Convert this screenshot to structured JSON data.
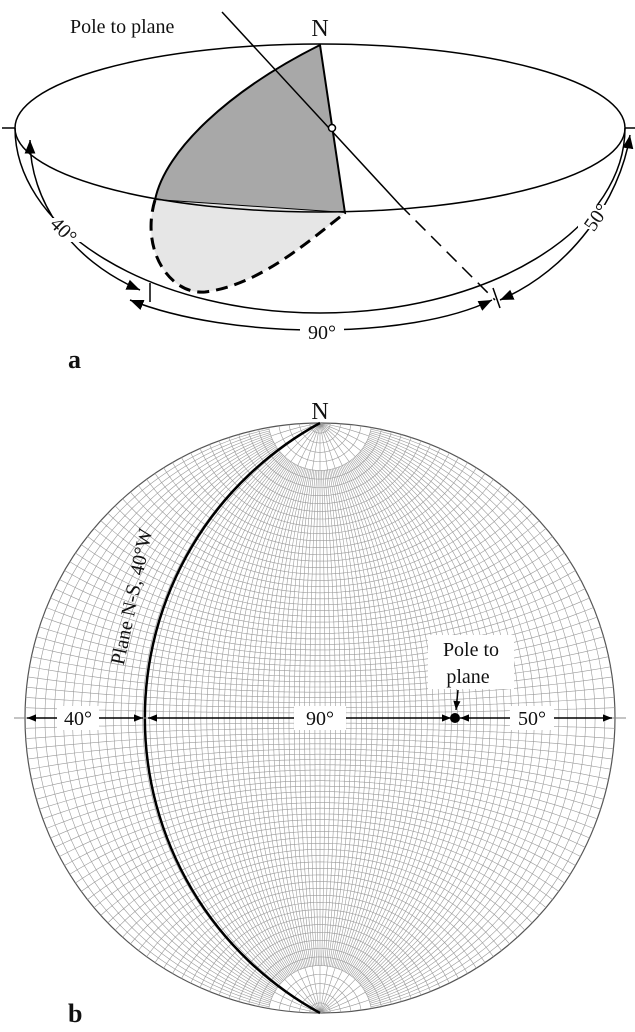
{
  "panel_a": {
    "label": "a",
    "north": "N",
    "pole_label": "Pole to plane",
    "angles": [
      "40°",
      "90°",
      "50°"
    ]
  },
  "panel_b": {
    "label": "b",
    "north": "N",
    "plane_label": "Plane N-S, 40°W",
    "pole_label": [
      "Pole to",
      "plane"
    ],
    "angles": [
      "40°",
      "90°",
      "50°"
    ]
  }
}
